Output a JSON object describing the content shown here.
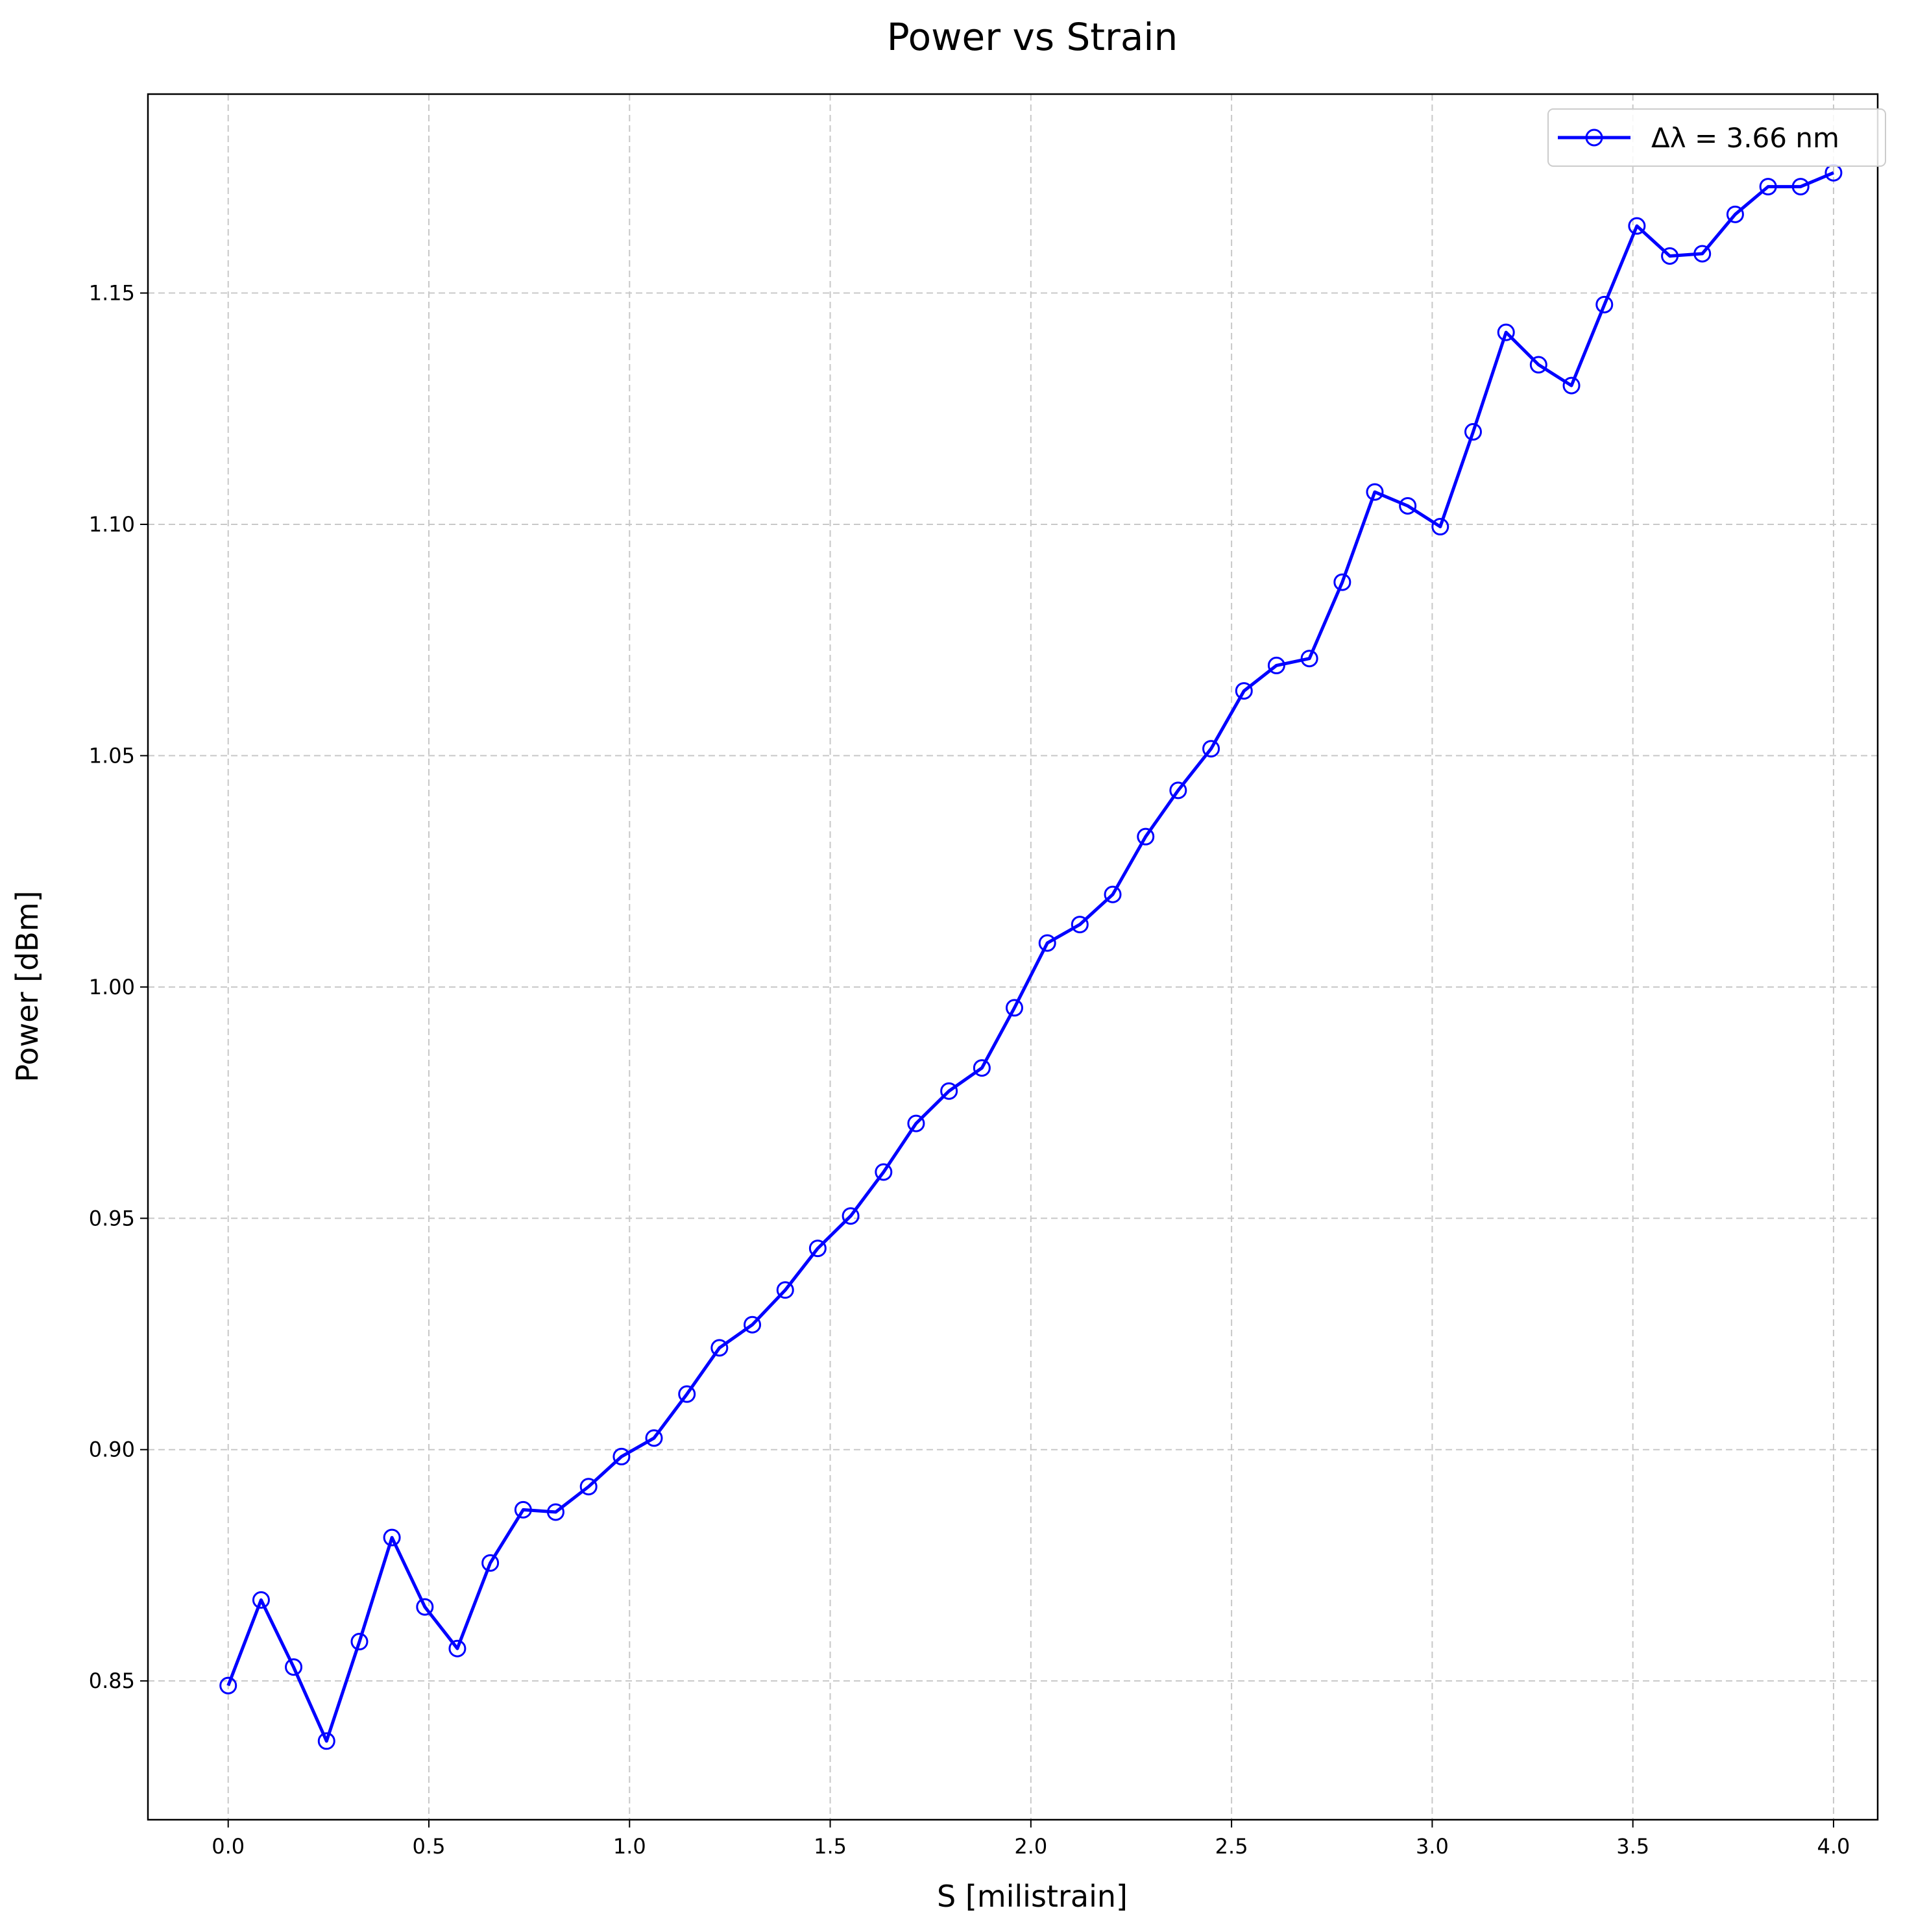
{
  "chart_data": {
    "type": "line",
    "title": "Power vs Strain",
    "xlabel": "S [milistrain]",
    "ylabel": "Power [dBm]",
    "xlim": [
      -0.2,
      4.11
    ],
    "ylim": [
      0.82,
      1.193
    ],
    "xticks": [
      "0.0",
      "0.5",
      "1.0",
      "1.5",
      "2.0",
      "2.5",
      "3.0",
      "3.5",
      "4.0"
    ],
    "yticks": [
      "0.85",
      "0.90",
      "0.95",
      "1.00",
      "1.05",
      "1.10",
      "1.15"
    ],
    "grid": true,
    "legend_position": "top-right",
    "series": [
      {
        "name": "Δλ  = 3.66 nm",
        "color": "#0000ff",
        "marker": "open-circle",
        "x": [
          0.0,
          0.082,
          0.163,
          0.245,
          0.327,
          0.408,
          0.49,
          0.571,
          0.653,
          0.735,
          0.816,
          0.898,
          0.98,
          1.061,
          1.143,
          1.224,
          1.306,
          1.388,
          1.469,
          1.551,
          1.633,
          1.714,
          1.796,
          1.878,
          1.959,
          2.041,
          2.122,
          2.204,
          2.286,
          2.367,
          2.449,
          2.531,
          2.612,
          2.694,
          2.776,
          2.857,
          2.939,
          3.02,
          3.102,
          3.184,
          3.265,
          3.347,
          3.429,
          3.51,
          3.592,
          3.673,
          3.755,
          3.837,
          3.918,
          4.0
        ],
        "y": [
          0.849,
          0.8675,
          0.853,
          0.837,
          0.8585,
          0.881,
          0.866,
          0.857,
          0.8755,
          0.887,
          0.8865,
          0.892,
          0.8985,
          0.9025,
          0.912,
          0.922,
          0.927,
          0.9345,
          0.9435,
          0.9505,
          0.96,
          0.9705,
          0.9775,
          0.9825,
          0.9955,
          1.0095,
          1.0135,
          1.02,
          1.0325,
          1.0425,
          1.0515,
          1.064,
          1.0695,
          1.071,
          1.0875,
          1.107,
          1.104,
          1.0995,
          1.12,
          1.1415,
          1.1345,
          1.13,
          1.1475,
          1.1645,
          1.158,
          1.1585,
          1.167,
          1.173,
          1.173,
          1.176
        ]
      }
    ]
  }
}
